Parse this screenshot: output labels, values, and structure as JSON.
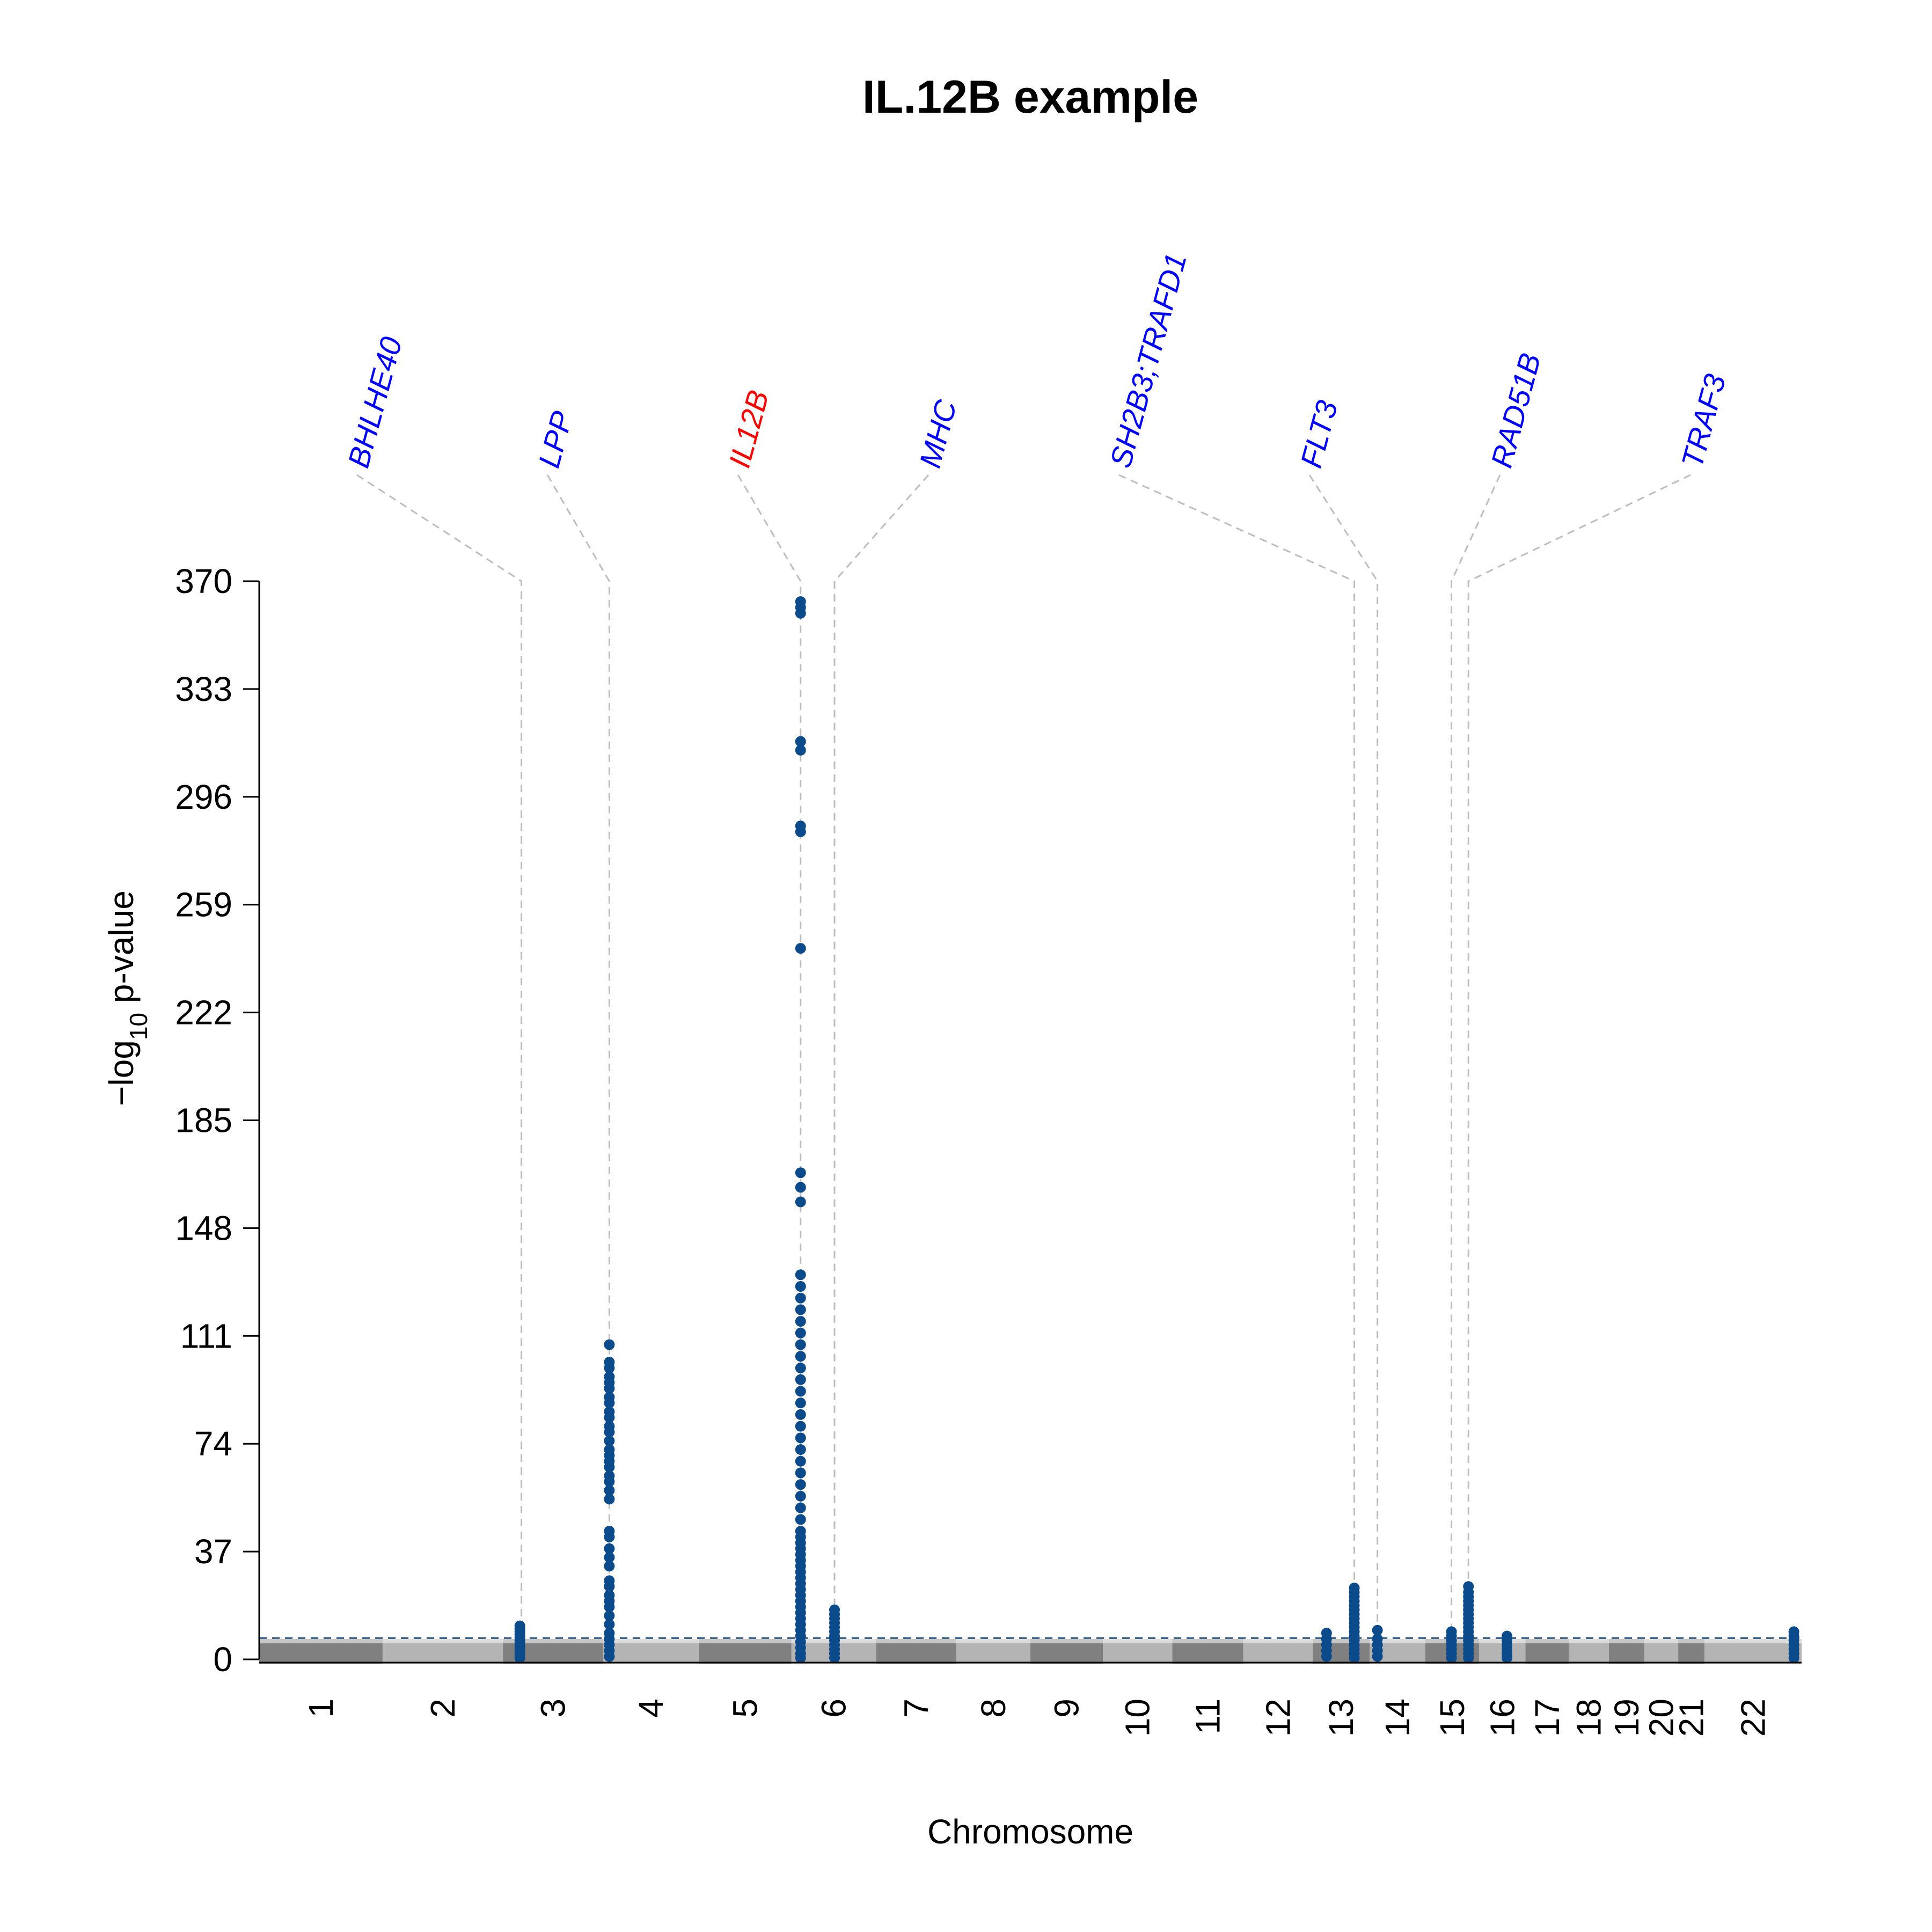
{
  "chart_data": {
    "type": "scatter",
    "subtype": "manhattan",
    "title": "IL.12B example",
    "xlabel": "Chromosome",
    "ylabel_parts": {
      "prefix": "−log",
      "subscript": "10",
      "suffix": " p-value"
    },
    "ylim": [
      0,
      370
    ],
    "y_ticks": [
      "0",
      "37",
      "74",
      "111",
      "148",
      "185",
      "222",
      "259",
      "296",
      "333",
      "370"
    ],
    "significance_threshold": 7.3,
    "chromosomes": [
      {
        "label": "1",
        "x0": 0.0,
        "x1": 0.08
      },
      {
        "label": "2",
        "x0": 0.08,
        "x1": 0.158
      },
      {
        "label": "3",
        "x0": 0.158,
        "x1": 0.223
      },
      {
        "label": "4",
        "x0": 0.223,
        "x1": 0.285
      },
      {
        "label": "5",
        "x0": 0.285,
        "x1": 0.345
      },
      {
        "label": "6",
        "x0": 0.345,
        "x1": 0.4
      },
      {
        "label": "7",
        "x0": 0.4,
        "x1": 0.452
      },
      {
        "label": "8",
        "x0": 0.452,
        "x1": 0.5
      },
      {
        "label": "9",
        "x0": 0.5,
        "x1": 0.547
      },
      {
        "label": "10",
        "x0": 0.547,
        "x1": 0.592
      },
      {
        "label": "11",
        "x0": 0.592,
        "x1": 0.638
      },
      {
        "label": "12",
        "x0": 0.638,
        "x1": 0.683
      },
      {
        "label": "13",
        "x0": 0.683,
        "x1": 0.72
      },
      {
        "label": "14",
        "x0": 0.72,
        "x1": 0.756
      },
      {
        "label": "15",
        "x0": 0.756,
        "x1": 0.791
      },
      {
        "label": "16",
        "x0": 0.791,
        "x1": 0.821
      },
      {
        "label": "17",
        "x0": 0.821,
        "x1": 0.849
      },
      {
        "label": "18",
        "x0": 0.849,
        "x1": 0.875
      },
      {
        "label": "19",
        "x0": 0.875,
        "x1": 0.898
      },
      {
        "label": "20",
        "x0": 0.898,
        "x1": 0.92
      },
      {
        "label": "21",
        "x0": 0.92,
        "x1": 0.937
      },
      {
        "label": "22",
        "x0": 0.937,
        "x1": 1.0
      }
    ],
    "gene_annotations": [
      {
        "label": "BHLHE40",
        "color": "#0000ff",
        "locus_pos": 0.17
      },
      {
        "label": "LPP",
        "color": "#0000ff",
        "locus_pos": 0.227
      },
      {
        "label": "IL12B",
        "color": "#ff0000",
        "locus_pos": 0.351
      },
      {
        "label": "MHC",
        "color": "#0000ff",
        "locus_pos": 0.373
      },
      {
        "label": "SH2B3;TRAFD1",
        "color": "#0000ff",
        "locus_pos": 0.71
      },
      {
        "label": "FLT3",
        "color": "#0000ff",
        "locus_pos": 0.725
      },
      {
        "label": "RAD51B",
        "color": "#0000ff",
        "locus_pos": 0.773
      },
      {
        "label": "TRAF3",
        "color": "#0000ff",
        "locus_pos": 0.784
      }
    ],
    "highlight_loci": [
      {
        "pos": 0.169,
        "values": [
          0.5,
          1.5,
          2.5,
          3.5,
          4.5,
          5.5,
          6.5,
          7.5,
          8.5,
          9.5,
          10.5,
          11.5
        ]
      },
      {
        "pos": 0.227,
        "values": [
          1,
          3,
          5,
          7,
          9,
          12,
          15,
          18,
          20,
          22,
          25,
          27,
          32,
          35,
          38,
          42,
          44,
          55,
          58,
          61,
          63,
          66,
          68,
          70,
          72,
          75,
          78,
          80,
          83,
          85,
          88,
          90,
          93,
          95,
          97,
          100,
          102,
          108
        ]
      },
      {
        "pos": 0.351,
        "values": [
          0.5,
          2,
          4,
          6,
          8,
          10,
          12,
          14,
          16,
          18,
          20,
          22,
          24,
          26,
          28,
          30,
          32,
          34,
          36,
          38,
          40,
          42,
          44,
          48,
          52,
          56,
          60,
          64,
          68,
          72,
          76,
          80,
          84,
          88,
          92,
          96,
          100,
          104,
          108,
          112,
          116,
          120,
          124,
          128,
          132,
          157,
          162,
          167,
          244,
          284,
          286,
          312,
          315,
          359,
          361,
          363
        ]
      },
      {
        "pos": 0.373,
        "values": [
          0.5,
          2,
          3.5,
          5,
          6.5,
          8,
          9.5,
          11,
          12.5,
          14,
          15.5,
          17
        ]
      },
      {
        "pos": 0.692,
        "values": [
          1,
          3,
          5,
          7,
          9
        ]
      },
      {
        "pos": 0.71,
        "values": [
          0.5,
          2,
          3.5,
          5,
          6.5,
          8,
          9.5,
          11,
          12.5,
          14,
          15.5,
          17,
          18.5,
          20,
          21.5,
          23,
          24.5
        ]
      },
      {
        "pos": 0.725,
        "values": [
          1,
          3,
          5,
          7,
          10
        ]
      },
      {
        "pos": 0.773,
        "values": [
          0.5,
          2,
          3.5,
          5,
          6.5,
          8,
          9.5
        ]
      },
      {
        "pos": 0.784,
        "values": [
          0.5,
          2,
          3.5,
          5,
          6.5,
          8,
          9.5,
          11,
          12.5,
          14,
          15.5,
          17,
          18.5,
          20,
          21.5,
          23,
          25
        ]
      },
      {
        "pos": 0.809,
        "values": [
          0.5,
          2,
          3.5,
          5,
          6.5,
          8
        ]
      },
      {
        "pos": 0.995,
        "values": [
          0.5,
          2,
          3.5,
          5,
          6.5,
          8,
          9.5
        ]
      }
    ],
    "colors": {
      "chrom_odd": "#808080",
      "chrom_even": "#b4b4b4",
      "highlight": "#0b4a8b",
      "threshold_line": "#2e5a87",
      "guide_line": "#bdbdbd"
    }
  }
}
